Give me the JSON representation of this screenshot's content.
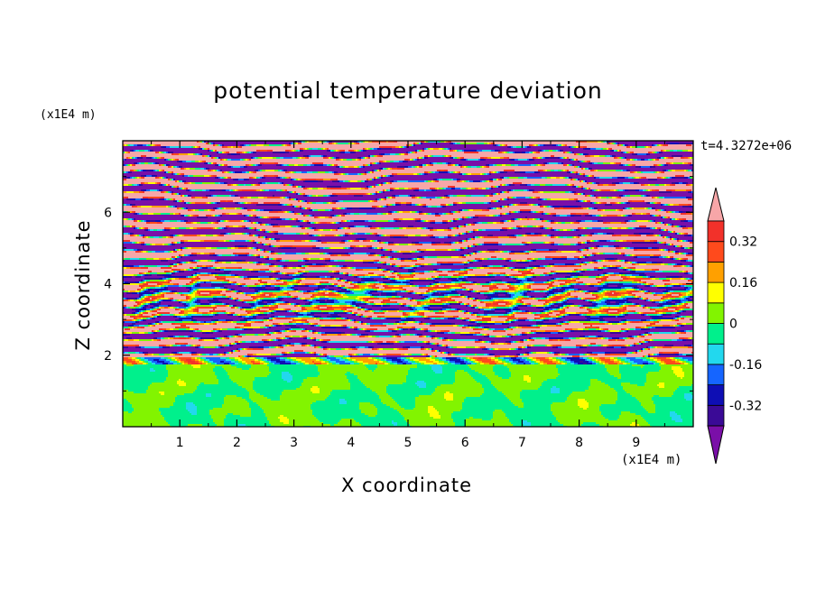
{
  "chart_data": {
    "type": "heatmap",
    "title": "potential temperature deviation",
    "xlabel": "X coordinate",
    "ylabel": "Z coordinate",
    "x_unit": "(x1E4 m)",
    "z_unit": "(x1E4 m)",
    "time_label": "t=4.3272e+06",
    "xlim": [
      0,
      10
    ],
    "ylim": [
      0,
      8
    ],
    "x_ticks": [
      "1",
      "2",
      "3",
      "4",
      "5",
      "6",
      "7",
      "8",
      "9"
    ],
    "x_tick_values": [
      1,
      2,
      3,
      4,
      5,
      6,
      7,
      8,
      9
    ],
    "y_ticks": [
      "2",
      "4",
      "6"
    ],
    "y_tick_values": [
      2,
      4,
      6
    ],
    "colorbar": {
      "levels": [
        -0.4,
        -0.32,
        -0.24,
        -0.16,
        -0.08,
        0,
        0.08,
        0.16,
        0.24,
        0.32,
        0.4
      ],
      "labels": [
        "0.32",
        "0.16",
        "0",
        "-0.16",
        "-0.32"
      ],
      "label_values": [
        0.32,
        0.16,
        0,
        -0.16,
        -0.32
      ],
      "colors": [
        "#7a0fa8",
        "#3a0a96",
        "#0e0eb4",
        "#1565ff",
        "#22d8ee",
        "#00f08c",
        "#82f400",
        "#ffff00",
        "#ffa000",
        "#ff4a1c",
        "#f2312a",
        "#f7a6a8"
      ],
      "over_color": "#f7a6a8",
      "under_color": "#7a0fa8"
    }
  }
}
